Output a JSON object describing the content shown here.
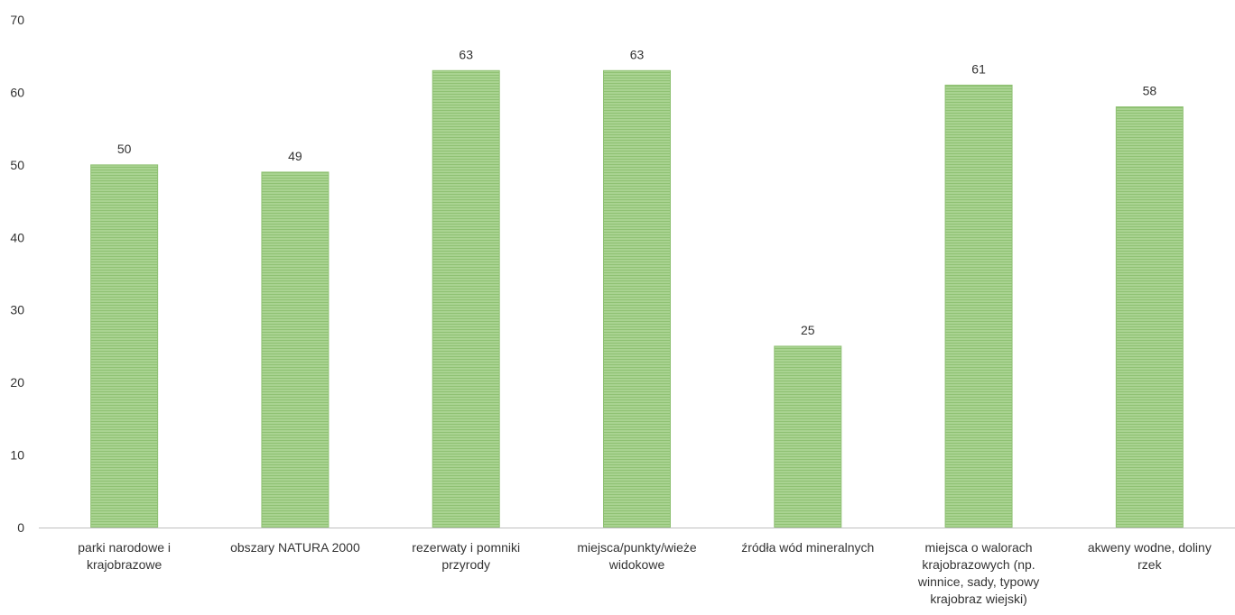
{
  "chart_data": {
    "type": "bar",
    "title": "",
    "xlabel": "",
    "ylabel": "",
    "ylim": [
      0,
      70
    ],
    "yticks": [
      0,
      10,
      20,
      30,
      40,
      50,
      60,
      70
    ],
    "grid": false,
    "legend": "none",
    "bar_color": "#a3cf8a",
    "bar_edge_color": "#8fc173",
    "axis_color": "#bfbfbf",
    "categories": [
      [
        "parki narodowe i",
        "krajobrazowe"
      ],
      [
        "obszary NATURA 2000"
      ],
      [
        "rezerwaty i pomniki",
        "przyrody"
      ],
      [
        "miejsca/punkty/wieże",
        "widokowe"
      ],
      [
        "źródła wód mineralnych"
      ],
      [
        "miejsca o walorach",
        "krajobrazowych (np.",
        "winnice, sady, typowy",
        "krajobraz wiejski)"
      ],
      [
        "akweny wodne, doliny",
        "rzek"
      ]
    ],
    "values": [
      50,
      49,
      63,
      63,
      25,
      61,
      58
    ],
    "data_labels": [
      "50",
      "49",
      "63",
      "63",
      "25",
      "61",
      "58"
    ]
  }
}
